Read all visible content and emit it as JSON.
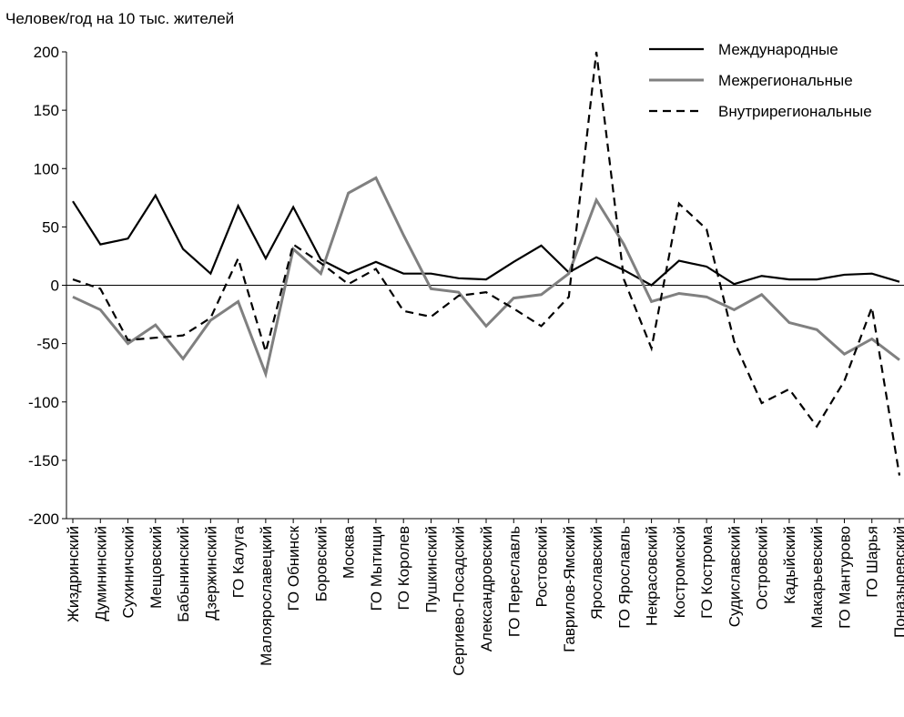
{
  "chart_data": {
    "type": "line",
    "title": "Человек/год на 10 тыс. жителей",
    "categories": [
      "Жиздринский",
      "Думининский",
      "Сухиничский",
      "Мещовский",
      "Бабынинский",
      "Дзержинский",
      "ГО Калуга",
      "Малоярославецкий",
      "ГО Обнинск",
      "Боровский",
      "Москва",
      "ГО Мытищи",
      "ГО Королев",
      "Пушкинский",
      "Сергиево-Посадский",
      "Александровский",
      "ГО Переславль",
      "Ростовский",
      "Гаврилов-Ямский",
      "Ярославский",
      "ГО Ярославль",
      "Некрасовский",
      "Костромской",
      "ГО Кострома",
      "Судиславский",
      "Островский",
      "Кадыйский",
      "Макарьевский",
      "ГО Мантурово",
      "ГО Шарья",
      "Поназыревский"
    ],
    "series": [
      {
        "name": "Международные",
        "color": "#000000",
        "linestyle": "solid",
        "values": [
          72,
          35,
          40,
          77,
          31,
          10,
          68,
          23,
          67,
          22,
          10,
          20,
          10,
          10,
          6,
          5,
          20,
          34,
          11,
          24,
          13,
          0,
          21,
          16,
          1,
          8,
          5,
          5,
          9,
          10,
          3
        ]
      },
      {
        "name": "Межрегиональные",
        "color": "#808080",
        "linestyle": "solid",
        "values": [
          -10,
          -21,
          -50,
          -34,
          -63,
          -30,
          -14,
          -76,
          31,
          10,
          79,
          92,
          43,
          -3,
          -6,
          -35,
          -11,
          -8,
          10,
          73,
          35,
          -14,
          -7,
          -10,
          -21,
          -8,
          -32,
          -38,
          -59,
          -46,
          -64
        ]
      },
      {
        "name": "Внутрирегиональные",
        "color": "#000000",
        "linestyle": "dashed",
        "values": [
          5,
          -3,
          -47,
          -45,
          -43,
          -28,
          23,
          -57,
          35,
          19,
          1,
          14,
          -22,
          -27,
          -9,
          -6,
          -20,
          -35,
          -10,
          200,
          5,
          -54,
          70,
          48,
          -48,
          -101,
          -89,
          -121,
          -82,
          -19,
          -163
        ]
      }
    ],
    "ylim": [
      -200,
      200
    ],
    "yticks": [
      -200,
      -150,
      -100,
      -50,
      0,
      50,
      100,
      150,
      200
    ],
    "legend": "upper right"
  }
}
